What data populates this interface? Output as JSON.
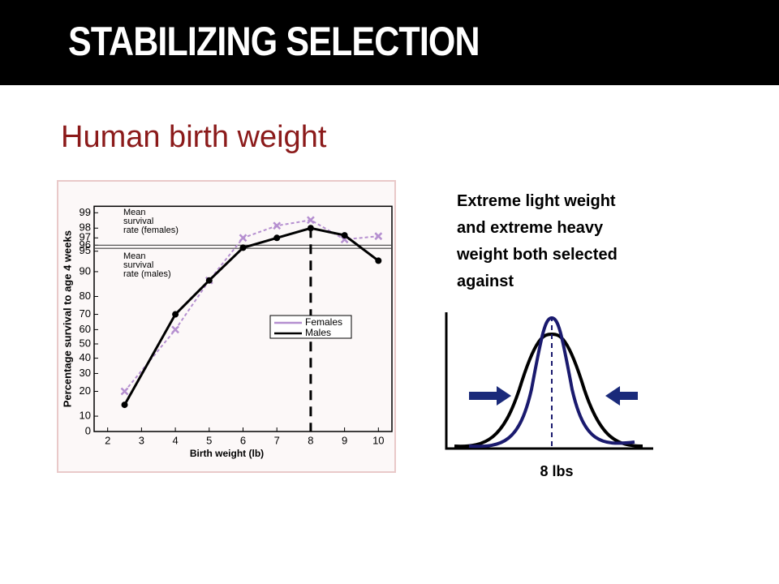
{
  "header": {
    "title": "STABILIZING SELECTION"
  },
  "subtitle": "Human birth weight",
  "note": [
    "Extreme light weight",
    "and extreme heavy",
    "weight both selected",
    "against"
  ],
  "diagram": {
    "label": "8 lbs"
  },
  "chart_data": {
    "type": "line",
    "scale": "probit",
    "xlabel": "Birth weight (lb)",
    "ylabel": "Percentage survival to age 4 weeks",
    "x": [
      2.5,
      4,
      5,
      6,
      7,
      8,
      9,
      10
    ],
    "series": [
      {
        "name": "Females",
        "color": "#b58fd0",
        "values": [
          20,
          60,
          87,
          97,
          98.2,
          98.6,
          96.8,
          97.2
        ]
      },
      {
        "name": "Males",
        "color": "#000000",
        "values": [
          14,
          70,
          87,
          95.6,
          97,
          98,
          97.3,
          93
        ]
      }
    ],
    "mean_lines": [
      {
        "label": [
          "Mean",
          "survival",
          "rate (females)"
        ],
        "value": 96
      },
      {
        "label": [
          "Mean",
          "survival",
          "rate (males)"
        ],
        "value": 95.5
      }
    ],
    "highlight_x": 8,
    "xlim": [
      1.6,
      10.4
    ],
    "xticks": [
      2,
      3,
      4,
      5,
      6,
      7,
      8,
      9,
      10
    ],
    "yticks": [
      0,
      10,
      20,
      30,
      40,
      50,
      60,
      70,
      80,
      90,
      95,
      96,
      97,
      98,
      99
    ]
  }
}
